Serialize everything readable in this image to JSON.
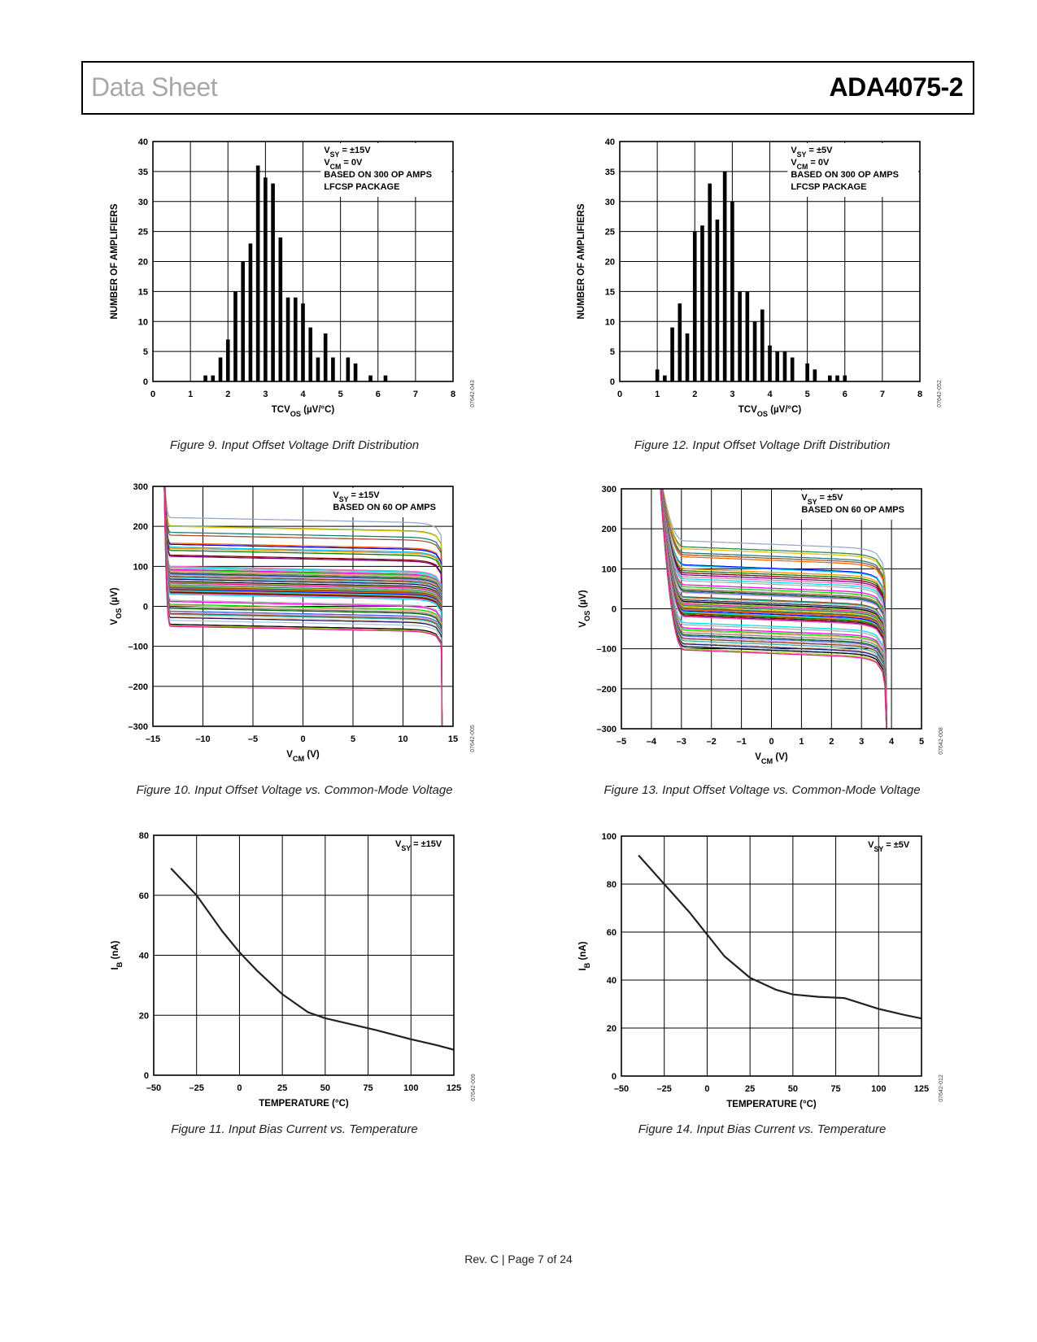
{
  "header": {
    "left": "Data Sheet",
    "right": "ADA4075-2"
  },
  "footer": "Rev. C | Page 7 of 24",
  "colors": {
    "palette": [
      "#9aa8c8",
      "#2e8b57",
      "#e6c200",
      "#1e7b7b",
      "#a0522d",
      "#ff6600",
      "#0000ff",
      "#00bfff",
      "#ff8c00",
      "#008000",
      "#800000",
      "#800080",
      "#ff69b4",
      "#00e5e5",
      "#b0b0b0",
      "#ff00ff",
      "#00e000",
      "#ffa07a",
      "#808080",
      "#006400",
      "#4169e1",
      "#dda0dd",
      "#8b4513",
      "#20b2aa",
      "#f4c89a",
      "#191970",
      "#b0c4de",
      "#000000",
      "#9acd32",
      "#ff1493"
    ]
  },
  "chart_data": [
    {
      "figure": "Figure 9. Input Offset Voltage Drift Distribution",
      "code": "07642-043",
      "type": "bar",
      "xlim": [
        0,
        8
      ],
      "ylim": [
        0,
        40
      ],
      "xticks": [
        0,
        1,
        2,
        3,
        4,
        5,
        6,
        7,
        8
      ],
      "xtick_labels": [
        "0",
        "1",
        "2",
        "3",
        "4",
        "5",
        "6",
        "7",
        "8"
      ],
      "yticks": [
        0,
        5,
        10,
        15,
        20,
        25,
        30,
        35,
        40
      ],
      "ytick_labels": [
        "0",
        "5",
        "10",
        "15",
        "20",
        "25",
        "30",
        "35",
        "40"
      ],
      "xlabel": {
        "pre": "TCV",
        "sub": "OS",
        "post": " (µV/°C)"
      },
      "ylabel": {
        "pre": "NUMBER OF AMPLIFIERS",
        "sub": "",
        "post": ""
      },
      "annotation": [
        {
          "pre": "V",
          "sub": "SY",
          "post": " = ±15V"
        },
        {
          "pre": "V",
          "sub": "CM",
          "post": " = 0V"
        },
        {
          "pre": "BASED ON 300 OP AMPS",
          "sub": "",
          "post": ""
        },
        {
          "pre": "LFCSP PACKAGE",
          "sub": "",
          "post": ""
        }
      ],
      "x": [
        1.4,
        1.6,
        1.8,
        2.0,
        2.2,
        2.4,
        2.6,
        2.8,
        3.0,
        3.2,
        3.4,
        3.6,
        3.8,
        4.0,
        4.2,
        4.4,
        4.6,
        4.8,
        5.2,
        5.4,
        5.8,
        6.2
      ],
      "values": [
        1,
        1,
        4,
        7,
        15,
        20,
        23,
        36,
        34,
        33,
        24,
        14,
        14,
        13,
        9,
        4,
        8,
        4,
        4,
        3,
        1,
        1
      ]
    },
    {
      "figure": "Figure 10. Input Offset Voltage vs. Common-Mode Voltage",
      "code": "07642-005",
      "type": "line",
      "xlim": [
        -15,
        15
      ],
      "ylim": [
        -300,
        300
      ],
      "xticks": [
        -15,
        -10,
        -5,
        0,
        5,
        10,
        15
      ],
      "xtick_labels": [
        "–15",
        "–10",
        "–5",
        "0",
        "5",
        "10",
        "15"
      ],
      "yticks": [
        -300,
        -200,
        -100,
        0,
        100,
        200,
        300
      ],
      "ytick_labels": [
        "–300",
        "–200",
        "–100",
        "0",
        "100",
        "200",
        "300"
      ],
      "xlabel": {
        "pre": "V",
        "sub": "CM",
        "post": " (V)"
      },
      "ylabel": {
        "pre": "V",
        "sub": "OS",
        "post": " (µV)"
      },
      "annotation": [
        {
          "pre": "V",
          "sub": "SY",
          "post": " = ±15V"
        },
        {
          "pre": "BASED ON 60 OP AMPS",
          "sub": "",
          "post": ""
        }
      ],
      "vcm_range": [
        -13.9,
        13.9
      ],
      "series_offsets_uV": [
        222,
        201,
        200,
        185,
        178,
        158,
        155,
        148,
        145,
        140,
        128,
        125,
        100,
        98,
        95,
        92,
        90,
        88,
        85,
        82,
        80,
        78,
        75,
        72,
        70,
        68,
        65,
        62,
        60,
        58,
        55,
        52,
        50,
        48,
        46,
        44,
        42,
        40,
        38,
        36,
        35,
        33,
        32,
        30,
        15,
        12,
        5,
        2,
        -2,
        -5,
        -12,
        -15,
        -18,
        -20,
        -25,
        -28,
        -35,
        -45,
        -48,
        -50
      ]
    },
    {
      "figure": "Figure 11. Input Bias Current vs. Temperature",
      "code": "07642-009",
      "type": "line",
      "xlim": [
        -50,
        125
      ],
      "ylim": [
        0,
        80
      ],
      "xticks": [
        -50,
        -25,
        0,
        25,
        50,
        75,
        100,
        125
      ],
      "xtick_labels": [
        "–50",
        "–25",
        "0",
        "25",
        "50",
        "75",
        "100",
        "125"
      ],
      "yticks": [
        0,
        20,
        40,
        60,
        80
      ],
      "ytick_labels": [
        "0",
        "20",
        "40",
        "60",
        "80"
      ],
      "xlabel": {
        "pre": "TEMPERATURE (°C)",
        "sub": "",
        "post": ""
      },
      "ylabel": {
        "pre": "I",
        "sub": "B",
        "post": " (nA)"
      },
      "annotation": [
        {
          "pre": "V",
          "sub": "SY",
          "post": " = ±15V"
        }
      ],
      "x": [
        -40,
        -25,
        -10,
        0,
        10,
        25,
        40,
        50,
        65,
        80,
        100,
        115,
        125
      ],
      "values": [
        69,
        60,
        48,
        41,
        35,
        27,
        21,
        19,
        17,
        15,
        12,
        10,
        8.5
      ]
    },
    {
      "figure": "Figure 12. Input Offset Voltage Drift Distribution",
      "code": "07642-052",
      "type": "bar",
      "xlim": [
        0,
        8
      ],
      "ylim": [
        0,
        40
      ],
      "xticks": [
        0,
        1,
        2,
        3,
        4,
        5,
        6,
        7,
        8
      ],
      "xtick_labels": [
        "0",
        "1",
        "2",
        "3",
        "4",
        "5",
        "6",
        "7",
        "8"
      ],
      "yticks": [
        0,
        5,
        10,
        15,
        20,
        25,
        30,
        35,
        40
      ],
      "ytick_labels": [
        "0",
        "5",
        "10",
        "15",
        "20",
        "25",
        "30",
        "35",
        "40"
      ],
      "xlabel": {
        "pre": "TCV",
        "sub": "OS",
        "post": " (µV/°C)"
      },
      "ylabel": {
        "pre": "NUMBER OF AMPLIFIERS",
        "sub": "",
        "post": ""
      },
      "annotation": [
        {
          "pre": "V",
          "sub": "SY",
          "post": " = ±5V"
        },
        {
          "pre": "V",
          "sub": "CM",
          "post": " = 0V"
        },
        {
          "pre": "BASED ON 300 OP AMPS",
          "sub": "",
          "post": ""
        },
        {
          "pre": "LFCSP PACKAGE",
          "sub": "",
          "post": ""
        }
      ],
      "x": [
        1.0,
        1.2,
        1.4,
        1.6,
        1.8,
        2.0,
        2.2,
        2.4,
        2.6,
        2.8,
        3.0,
        3.2,
        3.4,
        3.6,
        3.8,
        4.0,
        4.2,
        4.4,
        4.6,
        5.0,
        5.2,
        5.6,
        5.8,
        6.0
      ],
      "values": [
        2,
        1,
        9,
        13,
        8,
        25,
        26,
        33,
        27,
        35,
        30,
        15,
        15,
        10,
        12,
        6,
        5,
        5,
        4,
        3,
        2,
        1,
        1,
        1
      ]
    },
    {
      "figure": "Figure 13. Input Offset Voltage vs. Common-Mode Voltage",
      "code": "07642-008",
      "type": "line",
      "xlim": [
        -5,
        5
      ],
      "ylim": [
        -300,
        300
      ],
      "xticks": [
        -5,
        -4,
        -3,
        -2,
        -1,
        0,
        1,
        2,
        3,
        4,
        5
      ],
      "xtick_labels": [
        "–5",
        "–4",
        "–3",
        "–2",
        "–1",
        "0",
        "1",
        "2",
        "3",
        "4",
        "5"
      ],
      "yticks": [
        -300,
        -200,
        -100,
        0,
        100,
        200,
        300
      ],
      "ytick_labels": [
        "–300",
        "–200",
        "–100",
        "0",
        "100",
        "200",
        "300"
      ],
      "xlabel": {
        "pre": "V",
        "sub": "CM",
        "post": " (V)"
      },
      "ylabel": {
        "pre": "V",
        "sub": "OS",
        "post": " (µV)"
      },
      "annotation": [
        {
          "pre": "V",
          "sub": "SY",
          "post": " = ±5V"
        },
        {
          "pre": "BASED ON 60 OP AMPS",
          "sub": "",
          "post": ""
        }
      ],
      "vcm_range": [
        -3.75,
        3.85
      ],
      "series_offsets_uV": [
        170,
        155,
        150,
        140,
        135,
        130,
        110,
        108,
        100,
        95,
        90,
        85,
        80,
        75,
        70,
        60,
        55,
        50,
        48,
        45,
        42,
        40,
        30,
        28,
        25,
        22,
        20,
        18,
        15,
        12,
        10,
        8,
        5,
        2,
        0,
        -2,
        -5,
        -8,
        -10,
        -12,
        -15,
        -18,
        -20,
        -35,
        -40,
        -48,
        -52,
        -55,
        -60,
        -65,
        -68,
        -72,
        -75,
        -80,
        -85,
        -88,
        -92,
        -95,
        -100,
        -103
      ]
    },
    {
      "figure": "Figure 14. Input Bias Current vs. Temperature",
      "code": "07642-012",
      "type": "line",
      "xlim": [
        -50,
        125
      ],
      "ylim": [
        0,
        100
      ],
      "xticks": [
        -50,
        -25,
        0,
        25,
        50,
        75,
        100,
        125
      ],
      "xtick_labels": [
        "–50",
        "–25",
        "0",
        "25",
        "50",
        "75",
        "100",
        "125"
      ],
      "yticks": [
        0,
        20,
        40,
        60,
        80,
        100
      ],
      "ytick_labels": [
        "0",
        "20",
        "40",
        "60",
        "80",
        "100"
      ],
      "xlabel": {
        "pre": "TEMPERATURE (°C)",
        "sub": "",
        "post": ""
      },
      "ylabel": {
        "pre": "I",
        "sub": "B",
        "post": " (nA)"
      },
      "annotation": [
        {
          "pre": "V",
          "sub": "SY",
          "post": " = ±5V"
        }
      ],
      "x": [
        -40,
        -25,
        -10,
        0,
        10,
        25,
        40,
        50,
        65,
        80,
        100,
        115,
        125
      ],
      "values": [
        92,
        80,
        68,
        59,
        50,
        41,
        36,
        34,
        33,
        32.5,
        28,
        25.5,
        24
      ]
    }
  ]
}
